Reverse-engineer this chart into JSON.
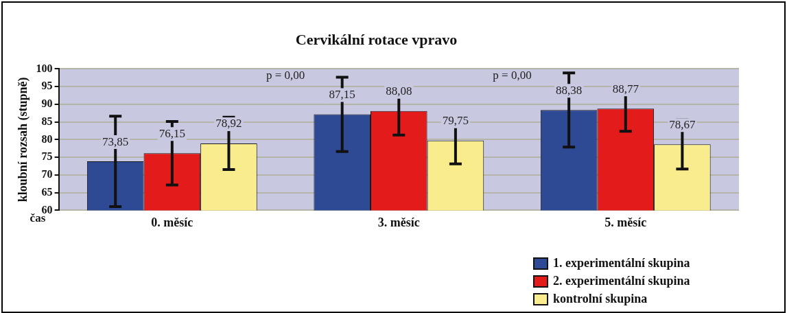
{
  "chart_data": {
    "type": "bar",
    "title": "Cervikální rotace vpravo",
    "xlabel": "čas",
    "ylabel": "kloubní rozsah (stupně)",
    "categories": [
      "0. měsíc",
      "3. měsíc",
      "5. měsíc"
    ],
    "series": [
      {
        "name": "1. experimentální skupina",
        "color": "#2e4a94",
        "values": [
          73.85,
          87.15,
          88.38
        ],
        "errors": [
          12.8,
          10.5,
          10.5
        ],
        "value_labels": [
          "73,85",
          "87,15",
          "88,38"
        ]
      },
      {
        "name": "2. experimentální skupina",
        "color": "#e31b1b",
        "values": [
          76.15,
          88.08,
          88.77
        ],
        "errors": [
          9.0,
          6.8,
          6.4
        ],
        "value_labels": [
          "76,15",
          "88,08",
          "88,77"
        ]
      },
      {
        "name": "kontrolní skupina",
        "color": "#f8ec8c",
        "values": [
          78.92,
          79.75,
          78.67
        ],
        "errors": [
          7.4,
          6.6,
          7.0
        ],
        "value_labels": [
          "78,92",
          "79,75",
          "78,67"
        ]
      }
    ],
    "ylim": [
      60,
      100
    ],
    "yticks": [
      60,
      65,
      70,
      75,
      80,
      85,
      90,
      95,
      100
    ],
    "grid": "y",
    "legend": "bottom right",
    "annotations": [
      "p = 0,00",
      "p = 0,00"
    ]
  }
}
